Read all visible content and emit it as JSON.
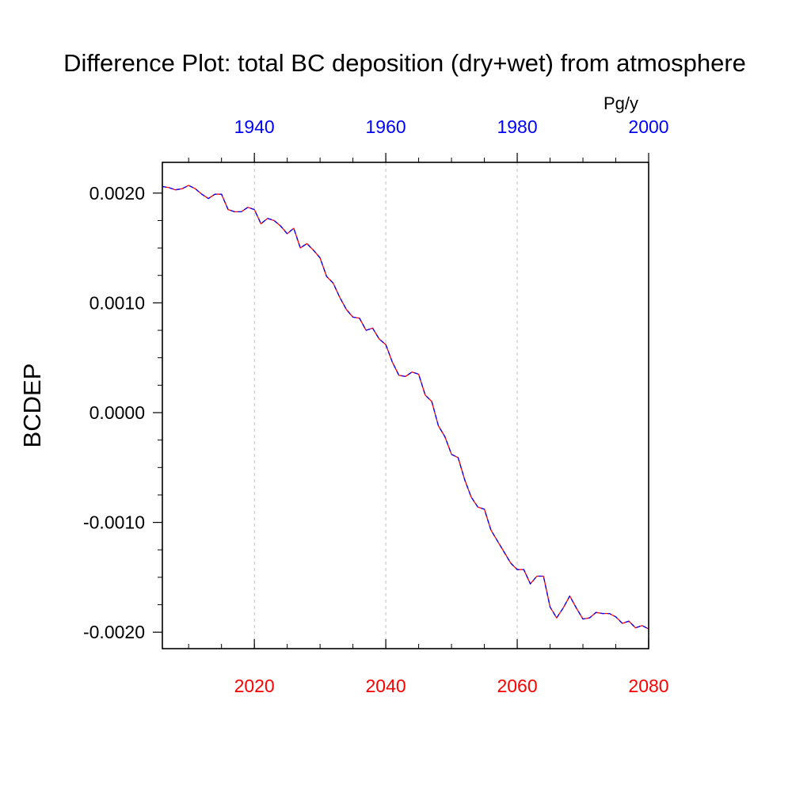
{
  "chart_data": {
    "type": "line",
    "title": "Difference Plot: total BC deposition (dry+wet) from atmosphere",
    "ylabel": "BCDEP",
    "units": "Pg/y",
    "xlim": [
      2006,
      2080
    ],
    "ylim": [
      -0.00215,
      0.00228
    ],
    "grid": "vertical dashed at bottom-axis major ticks",
    "bottom_axis": {
      "color": "#ff0000",
      "ticks": [
        2020,
        2040,
        2060,
        2080
      ],
      "labels": [
        "2020",
        "2040",
        "2060",
        "2080"
      ]
    },
    "top_axis": {
      "color": "#0000ff",
      "ticks": [
        1940,
        1960,
        1980,
        2000
      ],
      "labels": [
        "1940",
        "1960",
        "1980",
        "2000"
      ],
      "offset_years": 80
    },
    "left_axis": {
      "ticks": [
        0.002,
        0.001,
        0.0,
        -0.001,
        -0.002
      ],
      "labels": [
        "0.0020",
        "0.0010",
        "0.0000",
        "-0.0010",
        "-0.0020"
      ]
    },
    "line_colors": [
      "#ff0000",
      "#0000ff"
    ],
    "series": [
      {
        "x": [
          2006,
          2007,
          2008,
          2009,
          2010,
          2011,
          2012,
          2013,
          2014,
          2015,
          2016,
          2017,
          2018,
          2019,
          2020,
          2021,
          2022,
          2023,
          2024,
          2025,
          2026,
          2027,
          2028,
          2029,
          2030,
          2031,
          2032,
          2033,
          2034,
          2035,
          2036,
          2037,
          2038,
          2039,
          2040,
          2041,
          2042,
          2043,
          2044,
          2045,
          2046,
          2047,
          2048,
          2049,
          2050,
          2051,
          2052,
          2053,
          2054,
          2055,
          2056,
          2057,
          2058,
          2059,
          2060,
          2061,
          2062,
          2063,
          2064,
          2065,
          2066,
          2067,
          2068,
          2069,
          2070,
          2071,
          2072,
          2073,
          2074,
          2075,
          2076,
          2077,
          2078,
          2079,
          2080
        ],
        "values": [
          0.00206,
          0.00205,
          0.00203,
          0.00204,
          0.00207,
          0.00204,
          0.00199,
          0.00195,
          0.00199,
          0.00199,
          0.00185,
          0.00183,
          0.00183,
          0.00187,
          0.00185,
          0.00172,
          0.00177,
          0.00175,
          0.0017,
          0.00163,
          0.00168,
          0.0015,
          0.00154,
          0.00148,
          0.00141,
          0.00124,
          0.00118,
          0.00105,
          0.00094,
          0.00087,
          0.00086,
          0.00075,
          0.00077,
          0.00067,
          0.00062,
          0.00046,
          0.00034,
          0.00033,
          0.00037,
          0.00035,
          0.00016,
          0.0001,
          -0.00012,
          -0.00022,
          -0.00038,
          -0.00041,
          -0.00061,
          -0.00077,
          -0.00086,
          -0.00088,
          -0.00107,
          -0.00117,
          -0.00127,
          -0.00137,
          -0.00143,
          -0.00143,
          -0.00156,
          -0.00149,
          -0.00149,
          -0.00177,
          -0.00187,
          -0.00178,
          -0.00167,
          -0.00178,
          -0.00188,
          -0.00187,
          -0.00182,
          -0.00183,
          -0.00183,
          -0.00186,
          -0.00192,
          -0.0019,
          -0.00196,
          -0.00194,
          -0.00197
        ]
      }
    ]
  }
}
